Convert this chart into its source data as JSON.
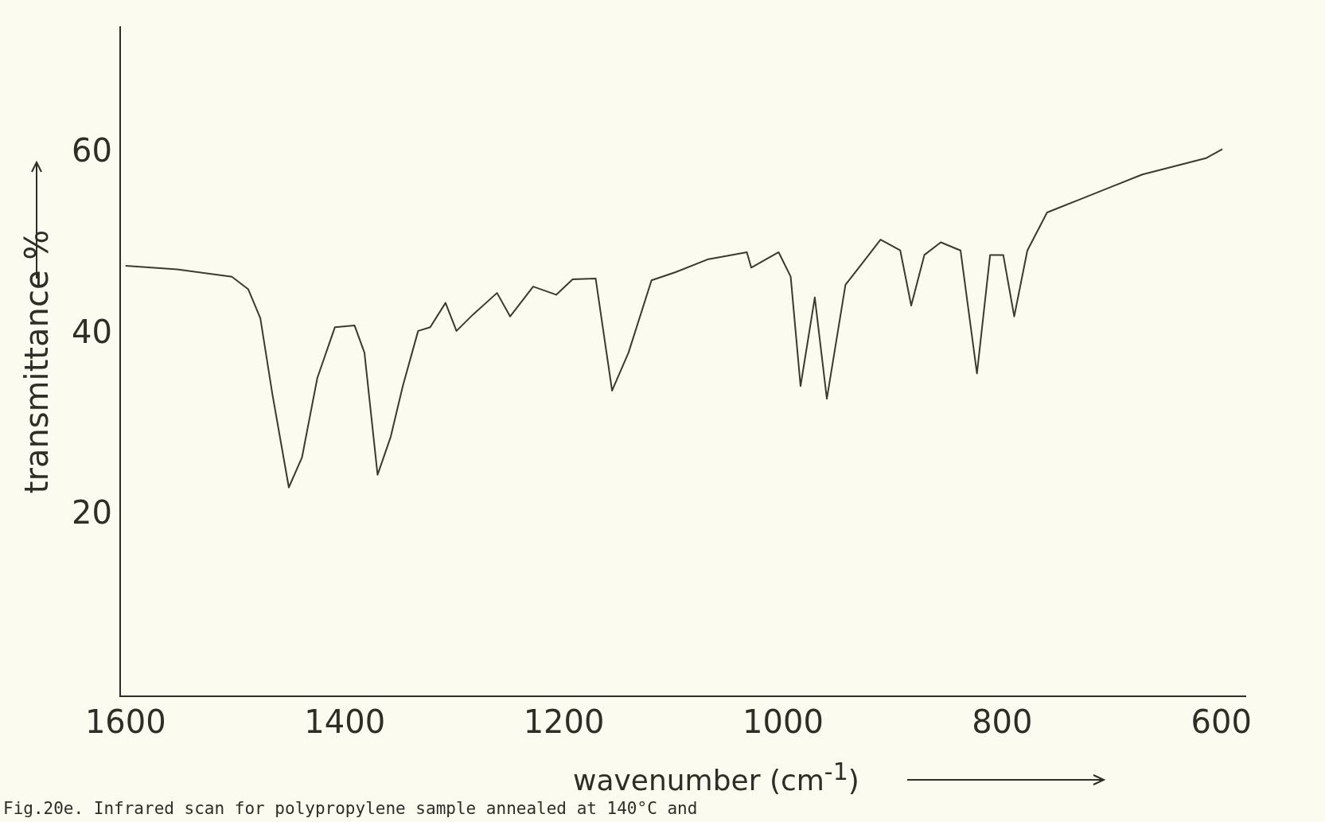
{
  "chart_data": {
    "type": "line",
    "xlabel": "wavenumber (cm$^{-1}$)",
    "ylabel": "transmittance %",
    "annotations": [
      "Fig.20e. Infrared scan for polypropylene sample annealed at 140°C and"
    ],
    "x": [
      1600,
      1553,
      1503,
      1488,
      1477,
      1466,
      1451,
      1439,
      1425,
      1409,
      1391,
      1382,
      1370,
      1358,
      1347,
      1333,
      1322,
      1308,
      1298,
      1283,
      1261,
      1249,
      1228,
      1207,
      1192,
      1171,
      1156,
      1141,
      1120,
      1098,
      1069,
      1033,
      1029,
      1004,
      993,
      984,
      971,
      960,
      943,
      925,
      911,
      893,
      883,
      871,
      856,
      838,
      823,
      811,
      799,
      789,
      777,
      759,
      730,
      701,
      672,
      643,
      614,
      599
    ],
    "series": [
      {
        "color": "#3a3a30",
        "values": [
          47.6,
          47.2,
          46.4,
          45.0,
          41.8,
          33.4,
          23.1,
          26.4,
          35.2,
          40.8,
          41.0,
          38.0,
          24.5,
          28.7,
          34.3,
          40.4,
          40.8,
          43.5,
          40.4,
          42.2,
          44.6,
          42.0,
          45.3,
          44.4,
          46.1,
          46.2,
          33.8,
          38.0,
          46.0,
          46.9,
          48.3,
          49.1,
          47.4,
          49.1,
          46.4,
          34.3,
          44.1,
          32.9,
          45.5,
          48.3,
          50.5,
          49.3,
          43.2,
          48.8,
          50.2,
          49.3,
          35.7,
          48.8,
          48.8,
          42.0,
          49.3,
          53.5,
          54.9,
          56.3,
          57.7,
          58.6,
          59.5,
          60.5
        ]
      }
    ],
    "xlim": [
      1605,
      578
    ],
    "ylim": [
      0,
      74
    ],
    "xticks": [
      1600,
      1400,
      1200,
      1000,
      800,
      600
    ],
    "yticks": [
      20,
      40,
      60
    ],
    "grid": false,
    "legend": false,
    "marker": "none",
    "line_style": "solid"
  }
}
